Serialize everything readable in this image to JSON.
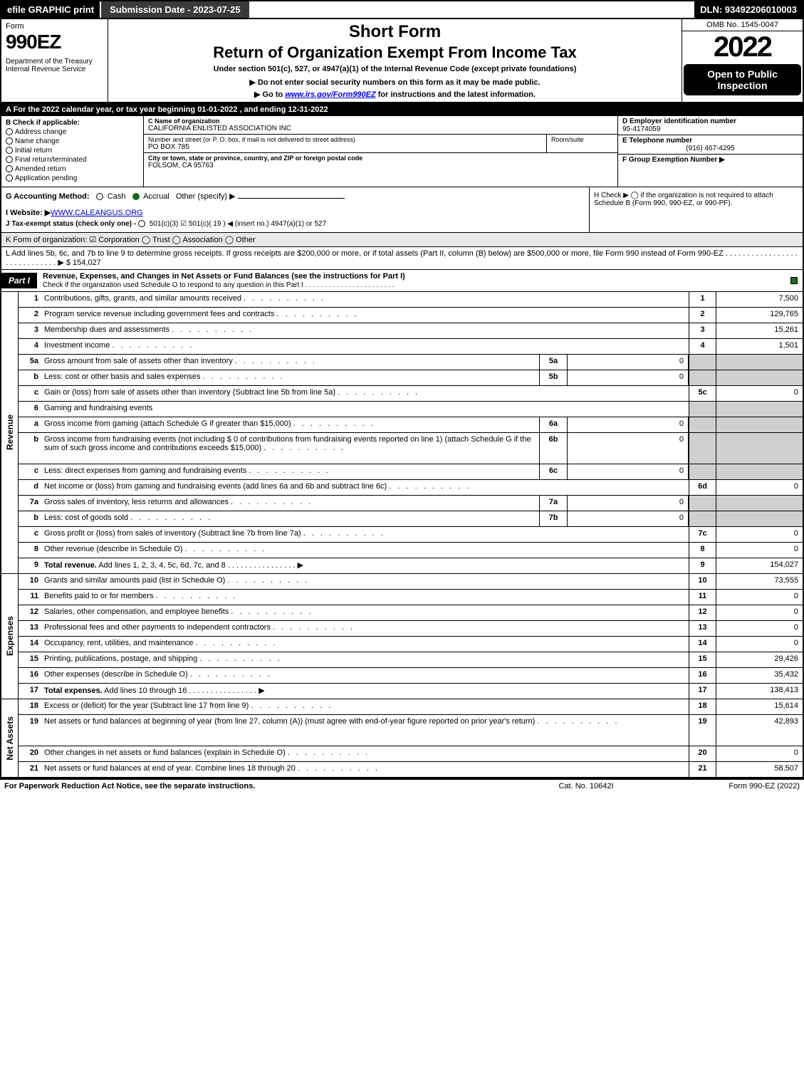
{
  "topbar": {
    "efile": "efile GRAPHIC print",
    "submission": "Submission Date - 2023-07-25",
    "dln": "DLN: 93492206010003"
  },
  "header": {
    "form_word": "Form",
    "form_num": "990EZ",
    "dept": "Department of the Treasury\nInternal Revenue Service",
    "short_form": "Short Form",
    "return_title": "Return of Organization Exempt From Income Tax",
    "under_section": "Under section 501(c), 527, or 4947(a)(1) of the Internal Revenue Code (except private foundations)",
    "instr1": "▶ Do not enter social security numbers on this form as it may be made public.",
    "instr2_pre": "▶ Go to ",
    "instr2_link": "www.irs.gov/Form990EZ",
    "instr2_post": " for instructions and the latest information.",
    "omb": "OMB No. 1545-0047",
    "year": "2022",
    "open": "Open to Public Inspection"
  },
  "row_a": "A  For the 2022 calendar year, or tax year beginning 01-01-2022 , and ending 12-31-2022",
  "col_b": {
    "label": "B  Check if applicable:",
    "opts": [
      "Address change",
      "Name change",
      "Initial return",
      "Final return/terminated",
      "Amended return",
      "Application pending"
    ]
  },
  "col_c": {
    "name_hdr": "C Name of organization",
    "name": "CALIFORNIA ENLISTED ASSOCIATION INC",
    "addr_hdr": "Number and street (or P. O. box, if mail is not delivered to street address)",
    "addr": "PO BOX 785",
    "room_hdr": "Room/suite",
    "city_hdr": "City or town, state or province, country, and ZIP or foreign postal code",
    "city": "FOLSOM, CA  95763"
  },
  "col_def": {
    "d_hdr": "D Employer identification number",
    "d_val": "95-4174059",
    "e_hdr": "E Telephone number",
    "e_val": "(916) 467-4295",
    "f_hdr": "F Group Exemption Number   ▶"
  },
  "row_g": {
    "label": "G Accounting Method:",
    "cash": "Cash",
    "accrual": "Accrual",
    "other": "Other (specify) ▶",
    "website_lbl": "I Website: ▶",
    "website": "WWW.CALEANGUS.ORG",
    "tax_lbl": "J Tax-exempt status (check only one) -",
    "tax_opts": "501(c)(3)   ☑ 501(c)( 19 ) ◀ (insert no.)   4947(a)(1) or   527"
  },
  "row_h": "H  Check ▶  ◯  if the organization is not required to attach Schedule B (Form 990, 990-EZ, or 990-PF).",
  "row_k": "K Form of organization:  ☑ Corporation   ◯ Trust   ◯ Association   ◯ Other",
  "row_l": "L Add lines 5b, 6c, and 7b to line 9 to determine gross receipts. If gross receipts are $200,000 or more, or if total assets (Part II, column (B) below) are $500,000 or more, file Form 990 instead of Form 990-EZ . . . . . . . . . . . . . . . . . . . . . . . . . . . . . ▶ $ 154,027",
  "part1": {
    "tag": "Part I",
    "title": "Revenue, Expenses, and Changes in Net Assets or Fund Balances (see the instructions for Part I)",
    "sub": "Check if the organization used Schedule O to respond to any question in this Part I . . . . . . . . . . . . . . . . . . . . . . ."
  },
  "revenue_lines": [
    {
      "n": "1",
      "d": "Contributions, gifts, grants, and similar amounts received",
      "box": "1",
      "v": "7,500"
    },
    {
      "n": "2",
      "d": "Program service revenue including government fees and contracts",
      "box": "2",
      "v": "129,765"
    },
    {
      "n": "3",
      "d": "Membership dues and assessments",
      "box": "3",
      "v": "15,261"
    },
    {
      "n": "4",
      "d": "Investment income",
      "box": "4",
      "v": "1,501"
    },
    {
      "n": "5a",
      "d": "Gross amount from sale of assets other than inventory",
      "in": "5a",
      "iv": "0"
    },
    {
      "n": "b",
      "d": "Less: cost or other basis and sales expenses",
      "in": "5b",
      "iv": "0"
    },
    {
      "n": "c",
      "d": "Gain or (loss) from sale of assets other than inventory (Subtract line 5b from line 5a)",
      "box": "5c",
      "v": "0"
    },
    {
      "n": "6",
      "d": "Gaming and fundraising events"
    },
    {
      "n": "a",
      "d": "Gross income from gaming (attach Schedule G if greater than $15,000)",
      "in": "6a",
      "iv": "0"
    },
    {
      "n": "b",
      "d": "Gross income from fundraising events (not including $  0     of contributions from fundraising events reported on line 1) (attach Schedule G if the sum of such gross income and contributions exceeds $15,000)",
      "in": "6b",
      "iv": "0",
      "tall": true
    },
    {
      "n": "c",
      "d": "Less: direct expenses from gaming and fundraising events",
      "in": "6c",
      "iv": "0"
    },
    {
      "n": "d",
      "d": "Net income or (loss) from gaming and fundraising events (add lines 6a and 6b and subtract line 6c)",
      "box": "6d",
      "v": "0"
    },
    {
      "n": "7a",
      "d": "Gross sales of inventory, less returns and allowances",
      "in": "7a",
      "iv": "0"
    },
    {
      "n": "b",
      "d": "Less: cost of goods sold",
      "in": "7b",
      "iv": "0"
    },
    {
      "n": "c",
      "d": "Gross profit or (loss) from sales of inventory (Subtract line 7b from line 7a)",
      "box": "7c",
      "v": "0"
    },
    {
      "n": "8",
      "d": "Other revenue (describe in Schedule O)",
      "box": "8",
      "v": "0"
    },
    {
      "n": "9",
      "d": "Total revenue. Add lines 1, 2, 3, 4, 5c, 6d, 7c, and 8",
      "box": "9",
      "v": "154,027",
      "bold": true,
      "arrow": true
    }
  ],
  "expense_lines": [
    {
      "n": "10",
      "d": "Grants and similar amounts paid (list in Schedule O)",
      "box": "10",
      "v": "73,555"
    },
    {
      "n": "11",
      "d": "Benefits paid to or for members",
      "box": "11",
      "v": "0"
    },
    {
      "n": "12",
      "d": "Salaries, other compensation, and employee benefits",
      "box": "12",
      "v": "0"
    },
    {
      "n": "13",
      "d": "Professional fees and other payments to independent contractors",
      "box": "13",
      "v": "0"
    },
    {
      "n": "14",
      "d": "Occupancy, rent, utilities, and maintenance",
      "box": "14",
      "v": "0"
    },
    {
      "n": "15",
      "d": "Printing, publications, postage, and shipping",
      "box": "15",
      "v": "29,426"
    },
    {
      "n": "16",
      "d": "Other expenses (describe in Schedule O)",
      "box": "16",
      "v": "35,432"
    },
    {
      "n": "17",
      "d": "Total expenses. Add lines 10 through 16",
      "box": "17",
      "v": "138,413",
      "bold": true,
      "arrow": true
    }
  ],
  "netassets_lines": [
    {
      "n": "18",
      "d": "Excess or (deficit) for the year (Subtract line 17 from line 9)",
      "box": "18",
      "v": "15,614"
    },
    {
      "n": "19",
      "d": "Net assets or fund balances at beginning of year (from line 27, column (A)) (must agree with end-of-year figure reported on prior year's return)",
      "box": "19",
      "v": "42,893",
      "tall": true
    },
    {
      "n": "20",
      "d": "Other changes in net assets or fund balances (explain in Schedule O)",
      "box": "20",
      "v": "0"
    },
    {
      "n": "21",
      "d": "Net assets or fund balances at end of year. Combine lines 18 through 20",
      "box": "21",
      "v": "58,507"
    }
  ],
  "side_labels": {
    "rev": "Revenue",
    "exp": "Expenses",
    "net": "Net Assets"
  },
  "foot": {
    "l": "For Paperwork Reduction Act Notice, see the separate instructions.",
    "m": "Cat. No. 10642I",
    "r": "Form 990-EZ (2022)"
  },
  "colors": {
    "black": "#000000",
    "checked": "#1a6b1a",
    "shade": "#d0d0d0",
    "link": "#0000cc"
  }
}
